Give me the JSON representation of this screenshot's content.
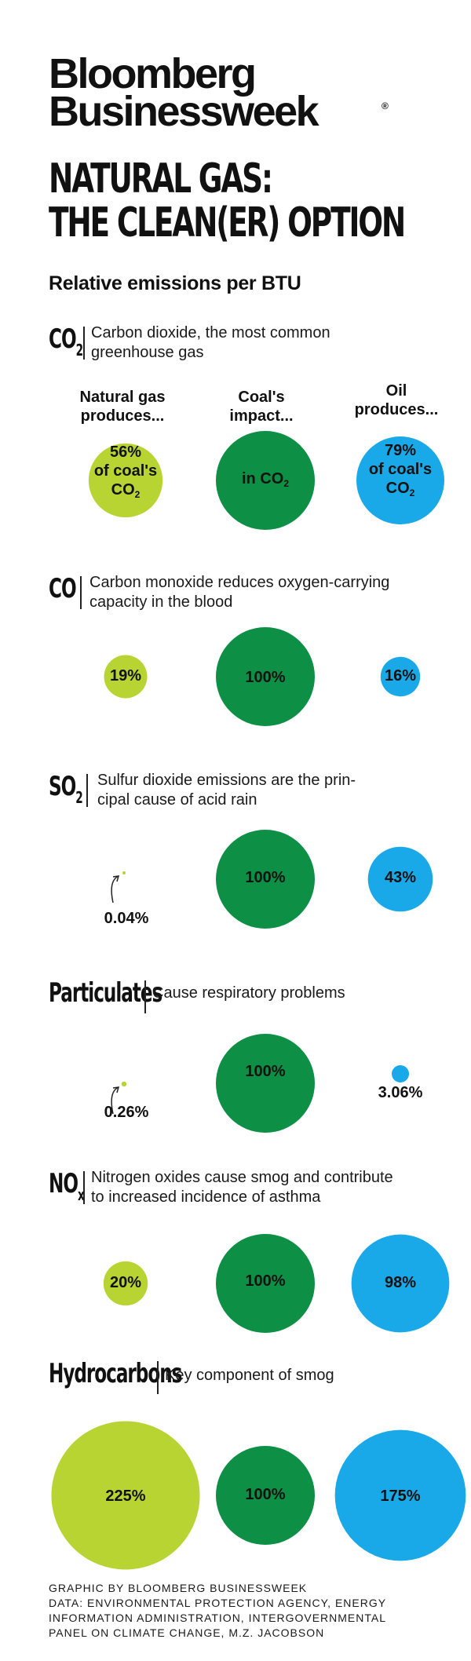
{
  "brand": {
    "line1": "Bloomberg",
    "line2": "Businessweek",
    "reg": "®"
  },
  "title": {
    "line1": "NATURAL GAS:",
    "line2": "THE CLEAN(ER) OPTION"
  },
  "subtitle": "Relative emissions per BTU",
  "columns": {
    "natural_gas": {
      "line1": "Natural gas",
      "line2": "produces..."
    },
    "coal": {
      "line1": "Coal's",
      "line2": "impact..."
    },
    "oil": {
      "line1": "Oil",
      "line2": "produces..."
    }
  },
  "colors": {
    "natural_gas": "#b8d432",
    "coal": "#0d8f45",
    "oil": "#19a9e8"
  },
  "sections": [
    {
      "id": "co2",
      "symbol": "CO",
      "symbol_sub": "2",
      "desc1": "Carbon dioxide, the most common",
      "desc2": "greenhouse gas",
      "labels": {
        "gas": {
          "pct": "56%",
          "l2": "of coal's",
          "l3": "CO",
          "l3sub": "2"
        },
        "coal": {
          "l1": "in CO",
          "l1sub": "2"
        },
        "oil": {
          "pct": "79%",
          "l2": "of coal's",
          "l3": "CO",
          "l3sub": "2"
        }
      }
    },
    {
      "id": "co",
      "symbol": "CO",
      "symbol_sub": "",
      "desc1": "Carbon monoxide reduces oxygen-carrying",
      "desc2": "capacity in the blood",
      "labels": {
        "gas": "19%",
        "coal": "100%",
        "oil": "16%"
      }
    },
    {
      "id": "so2",
      "symbol": "SO",
      "symbol_sub": "2",
      "desc1": "Sulfur dioxide emissions are the prin-",
      "desc2": "cipal cause of acid rain",
      "labels": {
        "gas": "0.04%",
        "coal": "100%",
        "oil": "43%"
      }
    },
    {
      "id": "particulates",
      "symbol": "Particulates",
      "symbol_sub": "",
      "desc1": "Cause respiratory problems",
      "desc2": "",
      "labels": {
        "gas": "0.26%",
        "coal": "100%",
        "oil": "3.06%"
      }
    },
    {
      "id": "nox",
      "symbol": "NO",
      "symbol_sub": "x",
      "desc1": "Nitrogen oxides cause smog and contribute",
      "desc2": "to increased incidence of asthma",
      "labels": {
        "gas": "20%",
        "coal": "100%",
        "oil": "98%"
      }
    },
    {
      "id": "hydrocarbons",
      "symbol": "Hydrocarbons",
      "symbol_sub": "",
      "desc1": "Key component of smog",
      "desc2": "",
      "labels": {
        "gas": "225%",
        "coal": "100%",
        "oil": "175%"
      }
    }
  ],
  "chart_data": {
    "type": "bubble",
    "title": "NATURAL GAS: THE CLEAN(ER) OPTION",
    "subtitle": "Relative emissions per BTU",
    "categories": [
      "Natural gas",
      "Coal",
      "Oil"
    ],
    "units": "% of coal's emissions",
    "series": [
      {
        "name": "CO2",
        "values": [
          56,
          100,
          79
        ]
      },
      {
        "name": "CO",
        "values": [
          19,
          100,
          16
        ]
      },
      {
        "name": "SO2",
        "values": [
          0.04,
          100,
          43
        ]
      },
      {
        "name": "Particulates",
        "values": [
          0.26,
          100,
          3.06
        ]
      },
      {
        "name": "NOx",
        "values": [
          20,
          100,
          98
        ]
      },
      {
        "name": "Hydrocarbons",
        "values": [
          225,
          100,
          175
        ]
      }
    ]
  },
  "footer": {
    "line1": "GRAPHIC BY BLOOMBERG BUSINESSWEEK",
    "line2": "DATA: ENVIRONMENTAL PROTECTION AGENCY, ENERGY",
    "line3": "INFORMATION ADMINISTRATION, INTERGOVERNMENTAL",
    "line4": "PANEL ON CLIMATE CHANGE, M.Z. JACOBSON"
  }
}
